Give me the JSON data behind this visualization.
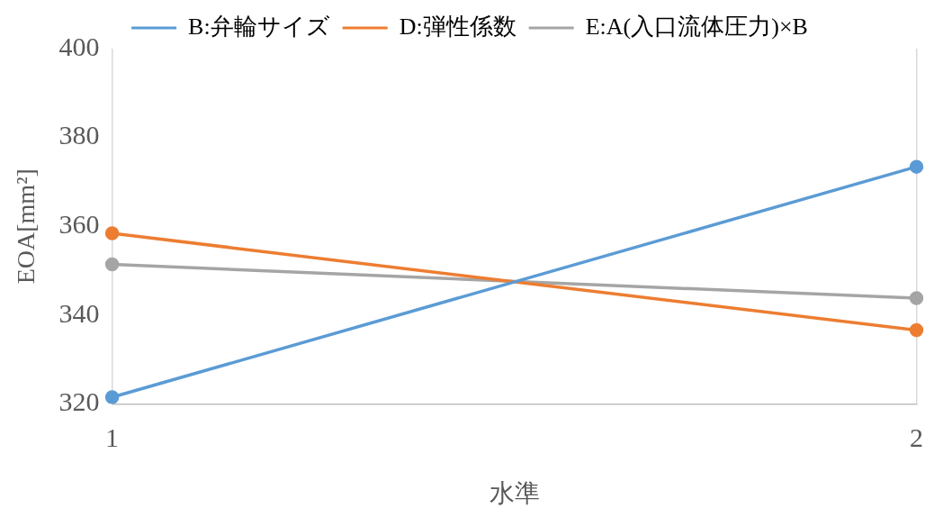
{
  "chart_data": {
    "type": "line",
    "xlabel": "水準",
    "ylabel": "EOA[mm²]",
    "categories": [
      "1",
      "2"
    ],
    "series": [
      {
        "name": "B:弁輪サイズ",
        "color": "#5b9bd5",
        "values": [
          321.5,
          373.4
        ]
      },
      {
        "name": "D:弾性係数",
        "color": "#ed7d31",
        "values": [
          358.4,
          336.6
        ]
      },
      {
        "name": "E:A(入口流体圧力)×B",
        "color": "#a5a5a5",
        "values": [
          351.4,
          343.8
        ]
      }
    ],
    "ylim": [
      320,
      400
    ],
    "yticks": [
      320,
      340,
      360,
      380,
      400
    ],
    "grid": "x",
    "legend": "top",
    "marker": "circle",
    "line_style": "solid"
  }
}
